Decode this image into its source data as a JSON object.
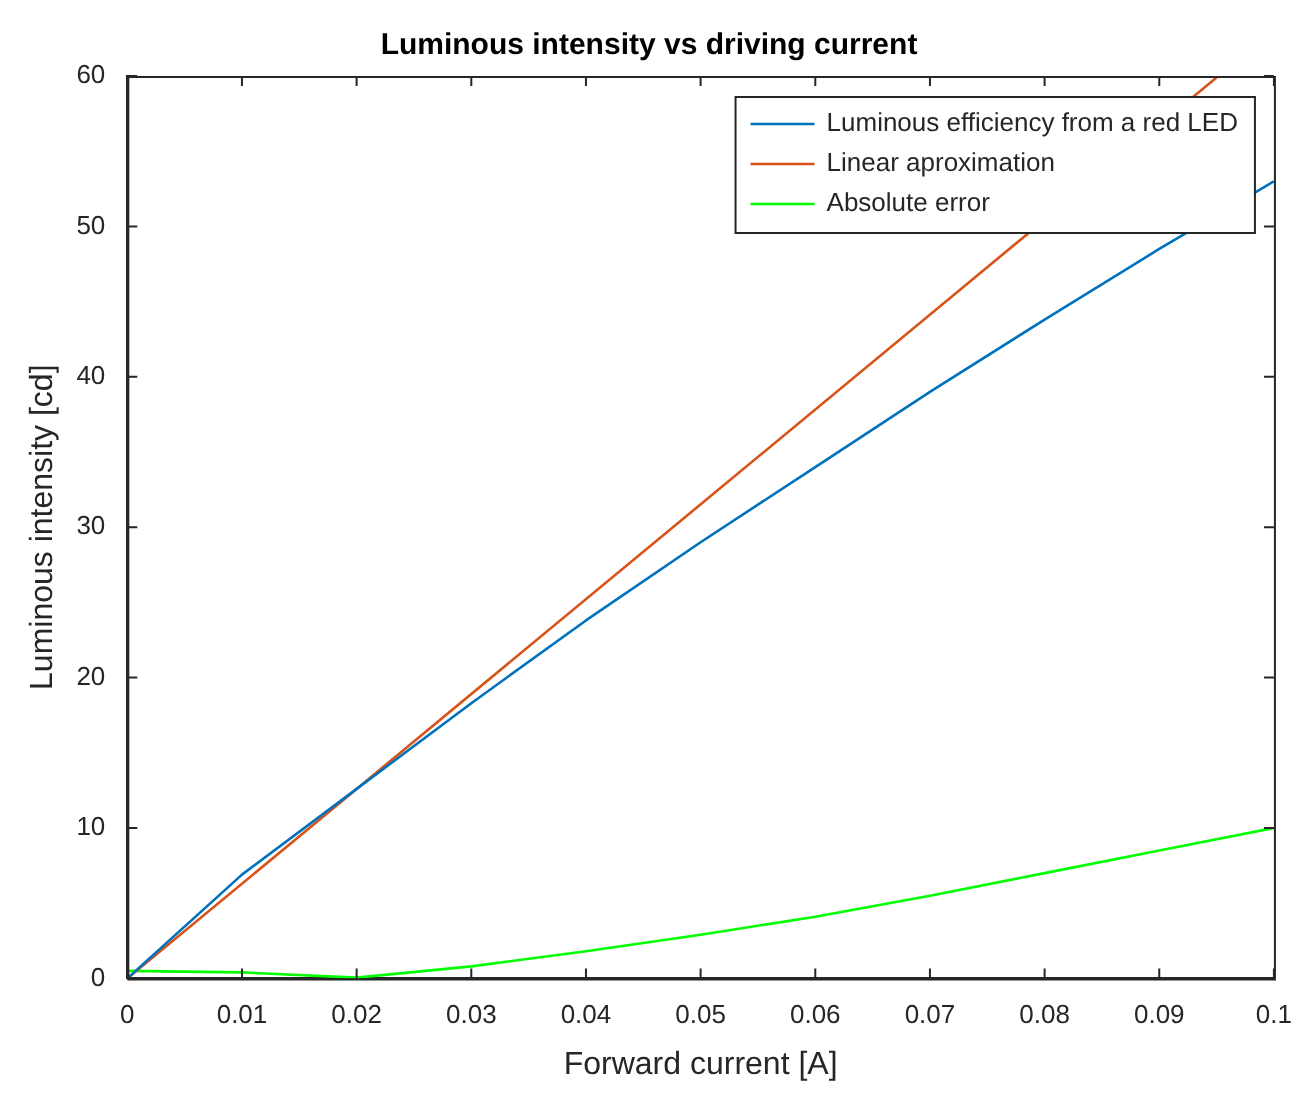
{
  "chart_data": {
    "type": "line",
    "title": "Luminous intensity vs driving current",
    "xlabel": "Forward current [A]",
    "ylabel": "Luminous intensity [cd]",
    "series": [
      {
        "name": "Luminous efficiency from a red LED",
        "color": "#0072bd",
        "x": [
          0,
          0.01,
          0.02,
          0.03,
          0.04,
          0.05,
          0.06,
          0.07,
          0.08,
          0.09,
          0.1
        ],
        "values": [
          0,
          6.9,
          12.6,
          18.3,
          23.8,
          29,
          34,
          39,
          43.8,
          48.5,
          53
        ]
      },
      {
        "name": "Linear aproximation",
        "color": "#d95319",
        "x": [
          0,
          0.02,
          0.095
        ],
        "values": [
          0,
          12.6,
          59.9
        ]
      },
      {
        "name": "Absolute error",
        "color": "#00ff00",
        "x": [
          0,
          0.01,
          0.02,
          0.03,
          0.04,
          0.05,
          0.06,
          0.07,
          0.08,
          0.09,
          0.1
        ],
        "values": [
          0.5,
          0.4,
          0.05,
          0.8,
          1.8,
          2.9,
          4.1,
          5.5,
          7,
          8.5,
          10
        ]
      }
    ],
    "xlim": [
      0,
      0.1
    ],
    "xticks": [
      0,
      0.01,
      0.02,
      0.03,
      0.04,
      0.05,
      0.06,
      0.07,
      0.08,
      0.09,
      0.1
    ],
    "ylim": [
      0,
      60
    ],
    "yticks": [
      0,
      10,
      20,
      30,
      40,
      50,
      60
    ],
    "legend": "top right"
  }
}
